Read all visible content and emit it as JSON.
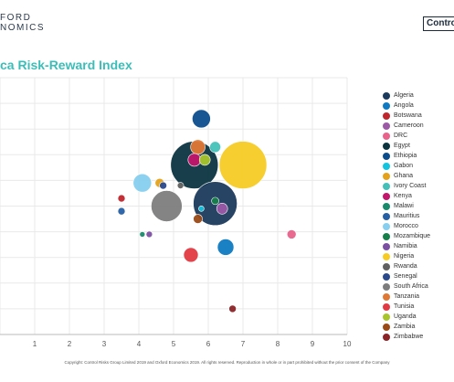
{
  "branding": {
    "left_logo_line1": "FORD",
    "left_logo_line2": "NOMICS",
    "right_logo": "Contro"
  },
  "title": "ca Risk-Reward Index",
  "footer": "Copyright: Control Risks Group Limited 2019 and Oxford Economics 2019. All rights reserved. Reproduction in whole or in part prohibited without the prior consent of the Company",
  "chart_data": {
    "type": "scatter",
    "title": "ca Risk-Reward Index",
    "xlabel": "",
    "ylabel": "",
    "xlim": [
      0,
      10
    ],
    "ylim": [
      0,
      10
    ],
    "x_ticks": [
      "1",
      "2",
      "3",
      "4",
      "5",
      "6",
      "7",
      "8",
      "9",
      "10"
    ],
    "grid": true,
    "legend_position": "right",
    "series": [
      {
        "name": "Algeria",
        "color": "#1b3a5c",
        "x": 6.2,
        "y": 5.1,
        "size": 24
      },
      {
        "name": "Angola",
        "color": "#0f7ac2",
        "x": 6.5,
        "y": 3.4,
        "size": 9
      },
      {
        "name": "Botswana",
        "color": "#c0262d",
        "x": 3.5,
        "y": 5.3,
        "size": 4
      },
      {
        "name": "Cameroon",
        "color": "#9b59a6",
        "x": 6.4,
        "y": 4.9,
        "size": 6
      },
      {
        "name": "DRC",
        "color": "#e8628b",
        "x": 8.4,
        "y": 3.9,
        "size": 5
      },
      {
        "name": "Egypt",
        "color": "#0b3440",
        "x": 5.6,
        "y": 6.6,
        "size": 26
      },
      {
        "name": "Ethiopia",
        "color": "#0b4d8c",
        "x": 5.8,
        "y": 8.4,
        "size": 10
      },
      {
        "name": "Gabon",
        "color": "#12c4de",
        "x": 5.8,
        "y": 4.9,
        "size": 3
      },
      {
        "name": "Ghana",
        "color": "#e4a21a",
        "x": 4.6,
        "y": 5.9,
        "size": 5
      },
      {
        "name": "Ivory Coast",
        "color": "#43c1b8",
        "x": 6.2,
        "y": 7.3,
        "size": 6
      },
      {
        "name": "Kenya",
        "color": "#c2156c",
        "x": 5.6,
        "y": 6.8,
        "size": 7
      },
      {
        "name": "Malawi",
        "color": "#1a8a6d",
        "x": 4.1,
        "y": 3.9,
        "size": 3
      },
      {
        "name": "Mauritius",
        "color": "#2660a4",
        "x": 3.5,
        "y": 4.8,
        "size": 4
      },
      {
        "name": "Mozambique",
        "color": "#15804a",
        "x": 6.2,
        "y": 5.2,
        "size": 4
      },
      {
        "name": "Namibia",
        "color": "#7b4fa2",
        "x": 4.3,
        "y": 3.9,
        "size": 3.5
      },
      {
        "name": "Nigeria",
        "color": "#f7cb24",
        "x": 7.0,
        "y": 6.6,
        "size": 26
      },
      {
        "name": "Rwanda",
        "color": "#606060",
        "x": 5.2,
        "y": 5.8,
        "size": 3.5
      },
      {
        "name": "Senegal",
        "color": "#2a4a8c",
        "x": 4.7,
        "y": 5.8,
        "size": 4
      },
      {
        "name": "South Africa",
        "color": "#7d7d7d",
        "x": 4.8,
        "y": 5.0,
        "size": 17
      },
      {
        "name": "Tanzania",
        "color": "#e07835",
        "x": 5.7,
        "y": 7.3,
        "size": 8
      },
      {
        "name": "Tunisia",
        "color": "#e23a42",
        "x": 5.5,
        "y": 3.1,
        "size": 8
      },
      {
        "name": "Uganda",
        "color": "#a8c52b",
        "x": 5.9,
        "y": 6.8,
        "size": 6
      },
      {
        "name": "Zambia",
        "color": "#9b4a16",
        "x": 5.7,
        "y": 4.5,
        "size": 5
      },
      {
        "name": "Zimbabwe",
        "color": "#8b2327",
        "x": 6.7,
        "y": 1.0,
        "size": 4
      },
      {
        "name": "Morocco",
        "color": "#86cfee",
        "x": 4.1,
        "y": 5.9,
        "size": 10
      }
    ]
  }
}
